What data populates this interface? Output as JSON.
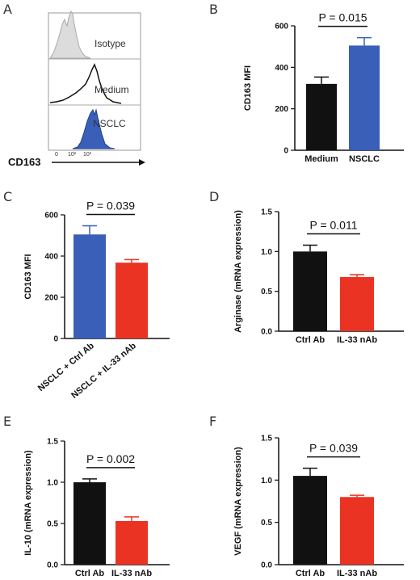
{
  "colors": {
    "black": "#111111",
    "blue": "#3a5fb8",
    "red": "#ea3323",
    "isotype_fill": "#dcdcdc",
    "nsclc_fill": "#3a5fb8"
  },
  "chart_data": [
    {
      "panel": "A",
      "type": "histogram",
      "xlabel": "CD163",
      "rows": [
        {
          "label": "Isotype"
        },
        {
          "label": "Medium"
        },
        {
          "label": "NSCLC"
        }
      ],
      "ticks": [
        "0",
        "10²",
        "10³"
      ]
    },
    {
      "panel": "B",
      "type": "bar",
      "ylabel": "CD163 MFI",
      "ylim": [
        0,
        600
      ],
      "yticks": [
        0,
        200,
        400,
        600
      ],
      "tick_decimals": 0,
      "categories": [
        "Medium",
        "NSCLC"
      ],
      "values": [
        320,
        505
      ],
      "errors": [
        33,
        38
      ],
      "colors": [
        "#111111",
        "#3a5fb8"
      ],
      "pvalue": "P = 0.015",
      "rotated_labels": false
    },
    {
      "panel": "C",
      "type": "bar",
      "ylabel": "CD163 MFI",
      "ylim": [
        0,
        600
      ],
      "yticks": [
        0,
        200,
        400,
        600
      ],
      "tick_decimals": 0,
      "categories": [
        "NSCLC + Ctrl Ab",
        "NSCLC + IL-33 nAb"
      ],
      "values": [
        505,
        368
      ],
      "errors": [
        42,
        15
      ],
      "colors": [
        "#3a5fb8",
        "#ea3323"
      ],
      "pvalue": "P = 0.039",
      "rotated_labels": true
    },
    {
      "panel": "D",
      "type": "bar",
      "ylabel": "Arginase (mRNA expression)",
      "ylim": [
        0,
        1.5
      ],
      "yticks": [
        0,
        0.5,
        1.0,
        1.5
      ],
      "tick_decimals": 1,
      "categories": [
        "Ctrl Ab",
        "IL-33 nAb"
      ],
      "values": [
        1.0,
        0.68
      ],
      "errors": [
        0.08,
        0.03
      ],
      "colors": [
        "#111111",
        "#ea3323"
      ],
      "pvalue": "P = 0.011",
      "rotated_labels": false
    },
    {
      "panel": "E",
      "type": "bar",
      "ylabel": "IL-10 (mRNA expression)",
      "ylim": [
        0,
        1.5
      ],
      "yticks": [
        0,
        0.5,
        1.0,
        1.5
      ],
      "tick_decimals": 1,
      "categories": [
        "Ctrl Ab",
        "IL-33 nAb"
      ],
      "values": [
        1.0,
        0.53
      ],
      "errors": [
        0.04,
        0.05
      ],
      "colors": [
        "#111111",
        "#ea3323"
      ],
      "pvalue": "P = 0.002",
      "rotated_labels": false
    },
    {
      "panel": "F",
      "type": "bar",
      "ylabel": "VEGF (mRNA expression)",
      "ylim": [
        0,
        1.5
      ],
      "yticks": [
        0,
        0.5,
        1.0,
        1.5
      ],
      "tick_decimals": 1,
      "categories": [
        "Ctrl Ab",
        "IL-33 nAb"
      ],
      "values": [
        1.05,
        0.8
      ],
      "errors": [
        0.09,
        0.02
      ],
      "colors": [
        "#111111",
        "#ea3323"
      ],
      "pvalue": "P = 0.039",
      "rotated_labels": false
    }
  ]
}
